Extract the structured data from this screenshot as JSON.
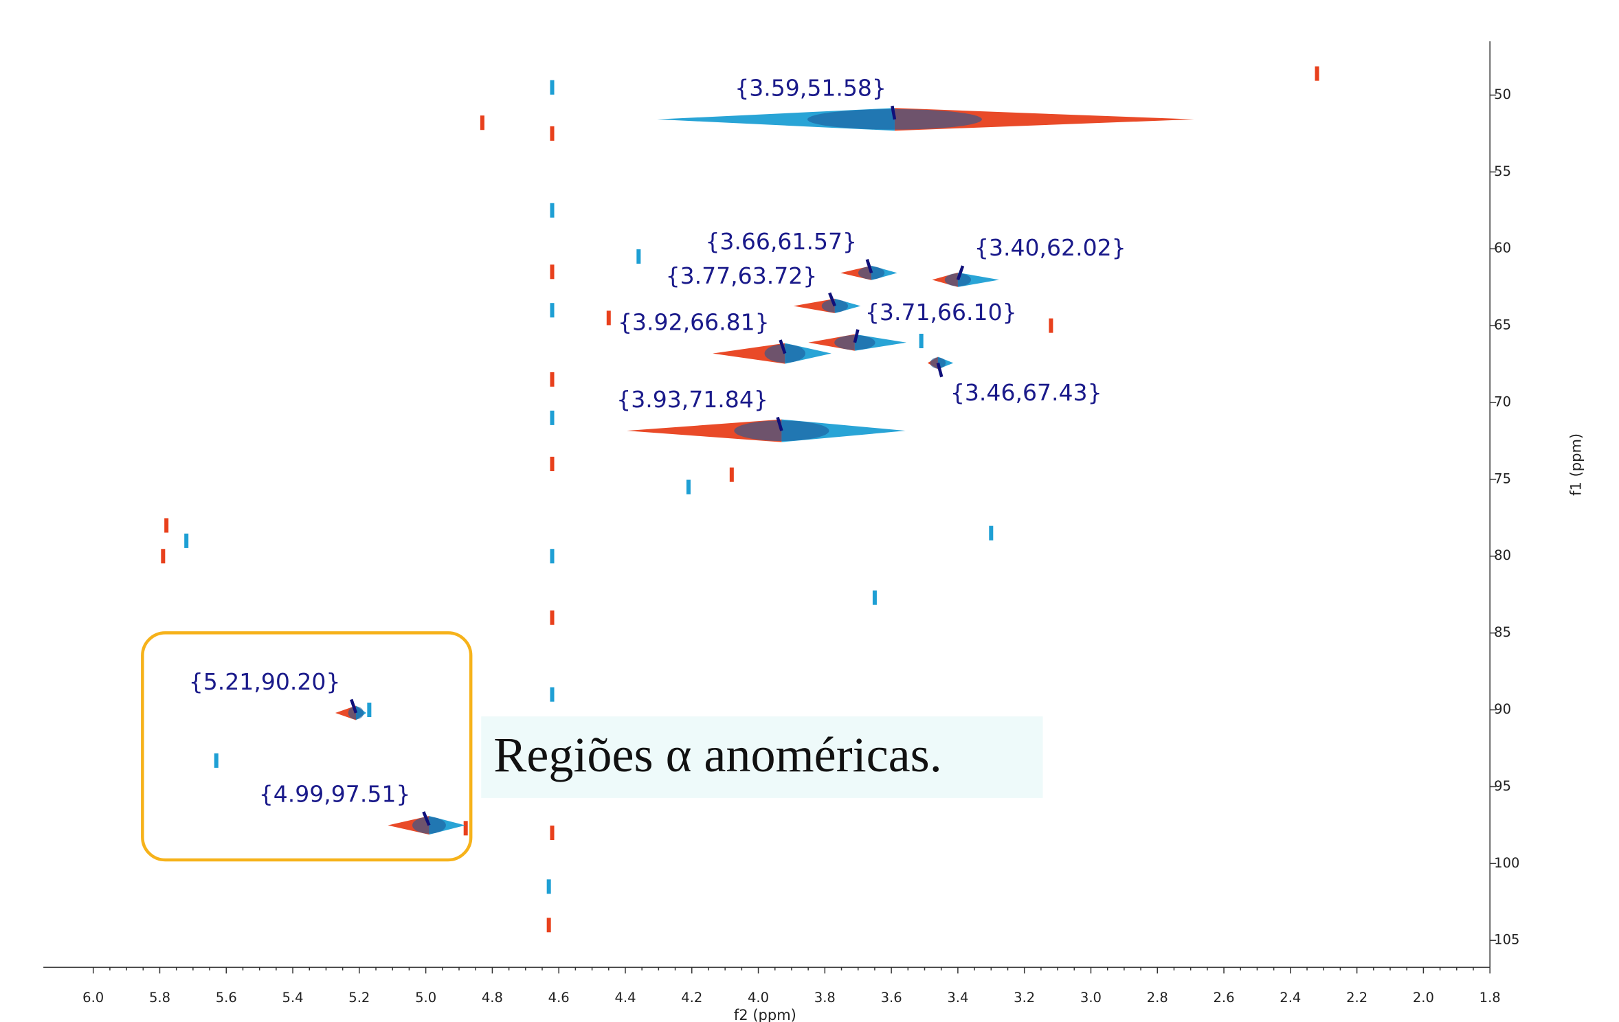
{
  "chart_data": {
    "type": "scatter",
    "xlabel": "f2 (ppm)",
    "ylabel": "f1 (ppm)",
    "annotation": "Regiões α anoméricas.",
    "xlim": [
      6.15,
      1.8
    ],
    "ylim": [
      46.5,
      106.75
    ],
    "xticks": [
      {
        "value": 6.0,
        "label": "6.0"
      },
      5.8,
      5.6,
      5.4,
      5.2,
      {
        "value": 5.0,
        "label": "5.0"
      },
      4.8,
      4.6,
      4.4,
      4.2,
      {
        "value": 4.0,
        "label": "4.0"
      },
      3.8,
      3.6,
      3.4,
      3.2,
      {
        "value": 3.0,
        "label": "3.0"
      },
      2.8,
      2.6,
      2.4,
      2.2,
      {
        "value": 2.0,
        "label": "2.0"
      },
      1.8
    ],
    "yticks": [
      50,
      55,
      60,
      65,
      70,
      75,
      80,
      85,
      90,
      95,
      100,
      105
    ],
    "colors": [
      "#e8401c",
      "#1e9fd4"
    ],
    "peaks": {
      "x": [
        3.59,
        3.66,
        3.4,
        3.77,
        3.71,
        3.92,
        3.46,
        3.93,
        5.21,
        4.99
      ],
      "y": [
        51.58,
        61.57,
        62.02,
        63.72,
        66.1,
        66.81,
        67.43,
        71.84,
        90.2,
        97.51
      ],
      "labels": [
        "{3.59,51.58}",
        "{3.66,61.57}",
        "{3.40,62.02}",
        "{3.77,63.72}",
        "{3.71,66.10}",
        "{3.92,66.81}",
        "{3.46,67.43}",
        "{3.93,71.84}",
        "{5.21,90.20}",
        "{4.99,97.51}"
      ]
    },
    "spots": {
      "x": [
        4.62,
        4.62,
        4.62,
        4.62,
        4.62,
        4.62,
        4.62,
        4.62,
        4.62,
        4.62,
        4.62,
        4.62,
        4.63,
        4.63,
        4.36,
        4.45,
        3.65,
        4.08,
        4.21,
        5.78,
        5.72,
        5.79,
        5.63,
        4.88,
        3.51,
        2.32,
        3.3,
        3.12,
        5.17,
        4.83
      ],
      "y": [
        49.5,
        52.5,
        57.5,
        61.5,
        64.0,
        68.5,
        71.0,
        74.0,
        80.0,
        84.0,
        89.0,
        98.0,
        101.5,
        104.0,
        60.5,
        64.5,
        82.7,
        74.7,
        75.5,
        78.0,
        79.0,
        80.0,
        93.3,
        97.7,
        66.0,
        48.6,
        78.5,
        65.0,
        90.0,
        51.8
      ]
    }
  }
}
